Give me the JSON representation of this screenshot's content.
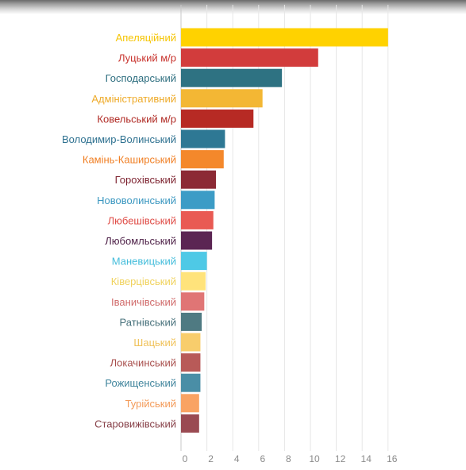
{
  "chart_data": {
    "type": "bar",
    "orientation": "horizontal",
    "categories": [
      "Апеляційний",
      "Луцький м/р",
      "Господарський",
      "Адміністративний",
      "Ковельський м/р",
      "Володимир-Волинський",
      "Камінь-Каширський",
      "Горохівський",
      "Нововолинський",
      "Любешівський",
      "Любомльський",
      "Маневицький",
      "Ківерцівський",
      "Іваничівський",
      "Ратнівський",
      "Шацький",
      "Локачинський",
      "Рожищенський",
      "Турійський",
      "Старовижівський"
    ],
    "values": [
      16,
      10.6,
      7.8,
      6.3,
      5.6,
      3.4,
      3.3,
      2.7,
      2.6,
      2.5,
      2.4,
      2.0,
      1.9,
      1.8,
      1.6,
      1.5,
      1.5,
      1.5,
      1.4,
      1.4
    ],
    "colors": [
      "#ffd200",
      "#d23c3c",
      "#2e7282",
      "#f3b734",
      "#b72a24",
      "#2e7894",
      "#f4882b",
      "#8c2a35",
      "#3c9cc6",
      "#e95a53",
      "#5b2553",
      "#4ec9e6",
      "#ffe37b",
      "#e07575",
      "#4f7a82",
      "#f8cd6c",
      "#b85a58",
      "#4a8ea6",
      "#f9a363",
      "#9a4a52"
    ],
    "label_colors": [
      "#f5c400",
      "#c8322c",
      "#2f6f80",
      "#eeaa28",
      "#b02a24",
      "#2e7190",
      "#f07f24",
      "#7d2330",
      "#3a97c0",
      "#df4a44",
      "#4c1f46",
      "#44bddb",
      "#f0d25c",
      "#d06a6a",
      "#46707a",
      "#f0c25a",
      "#a84e4c",
      "#3f849c",
      "#f39a58",
      "#874048"
    ],
    "x_ticks": [
      "0",
      "2",
      "4",
      "6",
      "8",
      "10",
      "12",
      "14",
      "16"
    ],
    "xlim": [
      0,
      16
    ],
    "grid": true,
    "legend": "none"
  }
}
